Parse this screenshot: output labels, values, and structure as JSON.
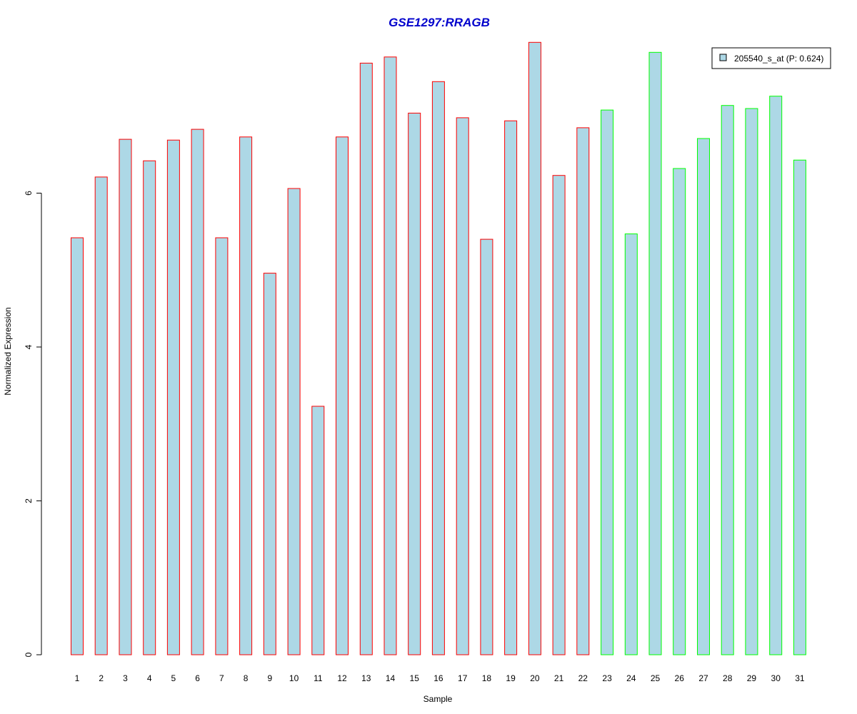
{
  "chart_data": {
    "type": "bar",
    "title": "GSE1297:RRAGB",
    "xlabel": "Sample",
    "ylabel": "Normalized Expression",
    "ylim": [
      0,
      8
    ],
    "yticks": [
      0,
      2,
      4,
      6
    ],
    "categories": [
      "1",
      "2",
      "3",
      "4",
      "5",
      "6",
      "7",
      "8",
      "9",
      "10",
      "11",
      "12",
      "13",
      "14",
      "15",
      "16",
      "17",
      "18",
      "19",
      "20",
      "21",
      "22",
      "23",
      "24",
      "25",
      "26",
      "27",
      "28",
      "29",
      "30",
      "31"
    ],
    "series": [
      {
        "name": "205540_s_at (P: 0.624)",
        "values": [
          5.42,
          6.21,
          6.7,
          6.42,
          6.69,
          6.83,
          5.42,
          6.73,
          4.96,
          6.06,
          3.23,
          6.73,
          7.69,
          7.77,
          7.04,
          7.45,
          6.98,
          5.4,
          6.94,
          7.96,
          6.23,
          6.85,
          7.08,
          5.47,
          7.83,
          6.32,
          6.71,
          7.14,
          7.1,
          7.26,
          6.43
        ],
        "groups": [
          "red",
          "red",
          "red",
          "red",
          "red",
          "red",
          "red",
          "red",
          "red",
          "red",
          "red",
          "red",
          "red",
          "red",
          "red",
          "red",
          "red",
          "red",
          "red",
          "red",
          "red",
          "red",
          "green",
          "green",
          "green",
          "green",
          "green",
          "green",
          "green",
          "green",
          "green"
        ]
      }
    ],
    "colors": {
      "title": "#0000CC",
      "bar_fill": "#ADD8E6",
      "group_red": "#FF0000",
      "group_green": "#00FF00",
      "axis": "#000000"
    },
    "legend": {
      "label": "205540_s_at (P: 0.624)",
      "position": "top-right"
    },
    "grid": false
  }
}
